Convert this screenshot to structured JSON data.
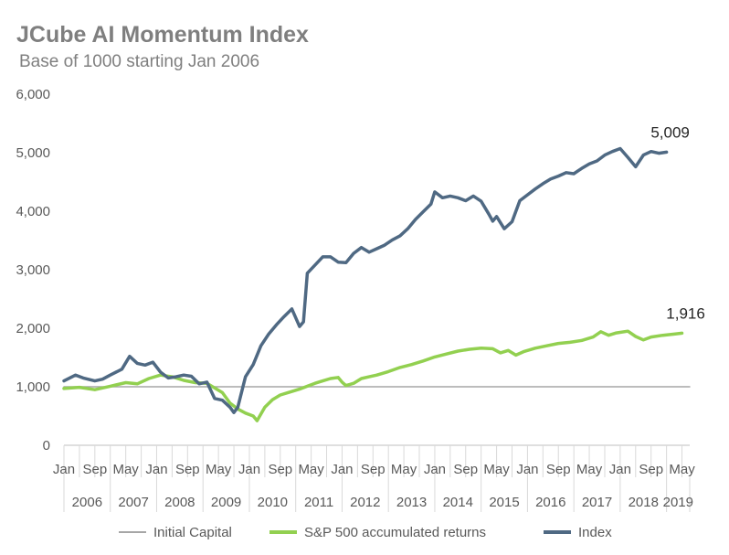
{
  "title": "JCube AI Momentum Index",
  "subtitle": "Base of 1000 starting Jan 2006",
  "chart_data": {
    "type": "line",
    "title": "JCube AI Momentum Index",
    "subtitle": "Base of 1000 starting Jan 2006",
    "xlabel": "",
    "ylabel": "",
    "ylim": [
      0,
      6000
    ],
    "y_ticks": [
      "0",
      "1,000",
      "2,000",
      "3,000",
      "4,000",
      "5,000",
      "6,000"
    ],
    "x_range": [
      "Jan 2006",
      "Jul 2019"
    ],
    "x_month_ticks": [
      "Jan",
      "Sep",
      "May",
      "Jan",
      "Sep",
      "May",
      "Jan",
      "Sep",
      "May",
      "Jan",
      "Sep",
      "May",
      "Jan",
      "Sep",
      "May",
      "Jan",
      "Sep",
      "May",
      "Jan",
      "Sep",
      "May"
    ],
    "x_year_labels": [
      "2006",
      "2007",
      "2008",
      "2009",
      "2010",
      "2011",
      "2012",
      "2013",
      "2014",
      "2015",
      "2016",
      "2017",
      "2018",
      "2019"
    ],
    "grid": false,
    "legend_position": "bottom",
    "series": [
      {
        "name": "Initial Capital",
        "color": "#a6a6a6",
        "values": [
          [
            0,
            1000
          ],
          [
            162,
            1000
          ]
        ]
      },
      {
        "name": "S&P 500 accumulated returns",
        "color": "#92d050",
        "values": [
          [
            0,
            970
          ],
          [
            4,
            990
          ],
          [
            8,
            950
          ],
          [
            12,
            1010
          ],
          [
            16,
            1070
          ],
          [
            19,
            1050
          ],
          [
            22,
            1140
          ],
          [
            25,
            1200
          ],
          [
            28,
            1170
          ],
          [
            31,
            1110
          ],
          [
            34,
            1070
          ],
          [
            37,
            1060
          ],
          [
            39,
            980
          ],
          [
            41,
            900
          ],
          [
            43,
            720
          ],
          [
            45,
            620
          ],
          [
            47,
            550
          ],
          [
            49,
            500
          ],
          [
            50,
            420
          ],
          [
            52,
            650
          ],
          [
            54,
            780
          ],
          [
            56,
            860
          ],
          [
            58,
            900
          ],
          [
            61,
            960
          ],
          [
            63,
            1010
          ],
          [
            65,
            1060
          ],
          [
            67,
            1100
          ],
          [
            69,
            1140
          ],
          [
            71,
            1160
          ],
          [
            72,
            1080
          ],
          [
            73,
            1020
          ],
          [
            75,
            1060
          ],
          [
            77,
            1140
          ],
          [
            79,
            1170
          ],
          [
            81,
            1200
          ],
          [
            84,
            1260
          ],
          [
            87,
            1330
          ],
          [
            90,
            1380
          ],
          [
            93,
            1440
          ],
          [
            96,
            1510
          ],
          [
            99,
            1560
          ],
          [
            102,
            1610
          ],
          [
            105,
            1640
          ],
          [
            108,
            1660
          ],
          [
            111,
            1650
          ],
          [
            113,
            1580
          ],
          [
            115,
            1620
          ],
          [
            117,
            1540
          ],
          [
            119,
            1600
          ],
          [
            122,
            1660
          ],
          [
            125,
            1700
          ],
          [
            128,
            1740
          ],
          [
            131,
            1760
          ],
          [
            134,
            1790
          ],
          [
            137,
            1850
          ],
          [
            139,
            1940
          ],
          [
            141,
            1880
          ],
          [
            143,
            1920
          ],
          [
            146,
            1950
          ],
          [
            148,
            1860
          ],
          [
            150,
            1800
          ],
          [
            152,
            1850
          ],
          [
            155,
            1880
          ],
          [
            158,
            1900
          ],
          [
            160,
            1916
          ]
        ]
      },
      {
        "name": "Index",
        "color": "#4f6983",
        "values": [
          [
            0,
            1100
          ],
          [
            3,
            1200
          ],
          [
            5,
            1150
          ],
          [
            8,
            1100
          ],
          [
            10,
            1130
          ],
          [
            12,
            1200
          ],
          [
            15,
            1300
          ],
          [
            17,
            1520
          ],
          [
            19,
            1400
          ],
          [
            21,
            1370
          ],
          [
            23,
            1420
          ],
          [
            25,
            1250
          ],
          [
            27,
            1150
          ],
          [
            29,
            1170
          ],
          [
            31,
            1200
          ],
          [
            33,
            1180
          ],
          [
            35,
            1050
          ],
          [
            37,
            1080
          ],
          [
            39,
            800
          ],
          [
            41,
            770
          ],
          [
            43,
            650
          ],
          [
            44,
            560
          ],
          [
            45,
            650
          ],
          [
            47,
            1170
          ],
          [
            49,
            1380
          ],
          [
            51,
            1700
          ],
          [
            53,
            1900
          ],
          [
            55,
            2060
          ],
          [
            57,
            2200
          ],
          [
            59,
            2330
          ],
          [
            61,
            2030
          ],
          [
            62,
            2110
          ],
          [
            63,
            2940
          ],
          [
            65,
            3080
          ],
          [
            67,
            3220
          ],
          [
            69,
            3220
          ],
          [
            71,
            3130
          ],
          [
            73,
            3120
          ],
          [
            75,
            3280
          ],
          [
            77,
            3380
          ],
          [
            79,
            3300
          ],
          [
            81,
            3360
          ],
          [
            83,
            3420
          ],
          [
            85,
            3510
          ],
          [
            87,
            3580
          ],
          [
            89,
            3700
          ],
          [
            91,
            3860
          ],
          [
            93,
            3990
          ],
          [
            95,
            4120
          ],
          [
            96,
            4330
          ],
          [
            98,
            4230
          ],
          [
            100,
            4260
          ],
          [
            102,
            4230
          ],
          [
            104,
            4180
          ],
          [
            106,
            4260
          ],
          [
            108,
            4170
          ],
          [
            110,
            3950
          ],
          [
            111,
            3830
          ],
          [
            112,
            3910
          ],
          [
            114,
            3700
          ],
          [
            116,
            3820
          ],
          [
            118,
            4180
          ],
          [
            120,
            4280
          ],
          [
            122,
            4380
          ],
          [
            124,
            4470
          ],
          [
            126,
            4550
          ],
          [
            128,
            4600
          ],
          [
            130,
            4660
          ],
          [
            132,
            4640
          ],
          [
            134,
            4730
          ],
          [
            136,
            4810
          ],
          [
            138,
            4860
          ],
          [
            140,
            4960
          ],
          [
            142,
            5020
          ],
          [
            144,
            5070
          ],
          [
            146,
            4920
          ],
          [
            148,
            4760
          ],
          [
            150,
            4960
          ],
          [
            152,
            5020
          ],
          [
            154,
            4990
          ],
          [
            156,
            5009
          ]
        ]
      }
    ],
    "annotations": [
      {
        "series": "Index",
        "text": "5,009"
      },
      {
        "series": "S&P 500 accumulated returns",
        "text": "1,916"
      }
    ]
  }
}
